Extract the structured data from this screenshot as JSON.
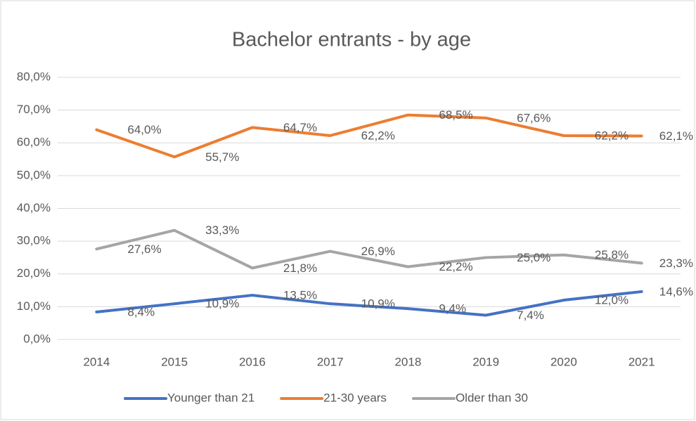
{
  "chart_data": {
    "type": "line",
    "title": "Bachelor entrants - by age",
    "categories": [
      "2014",
      "2015",
      "2016",
      "2017",
      "2018",
      "2019",
      "2020",
      "2021"
    ],
    "series": [
      {
        "name": "Younger than 21",
        "color": "#4472c4",
        "values": [
          8.4,
          10.9,
          13.5,
          10.9,
          9.4,
          7.4,
          12.0,
          14.6
        ],
        "value_labels": [
          "8,4%",
          "10,9%",
          "13,5%",
          "10,9%",
          "9,4%",
          "7,4%",
          "12,0%",
          "14,6%"
        ]
      },
      {
        "name": "21-30 years",
        "color": "#ed7d31",
        "values": [
          64.0,
          55.7,
          64.7,
          62.2,
          68.5,
          67.6,
          62.2,
          62.1
        ],
        "value_labels": [
          "64,0%",
          "55,7%",
          "64,7%",
          "62,2%",
          "68,5%",
          "67,6%",
          "62,2%",
          "62,1%"
        ]
      },
      {
        "name": "Older than 30",
        "color": "#a5a5a5",
        "values": [
          27.6,
          33.3,
          21.8,
          26.9,
          22.2,
          25.0,
          25.8,
          23.3
        ],
        "value_labels": [
          "27,6%",
          "33,3%",
          "21,8%",
          "26,9%",
          "22,2%",
          "25,0%",
          "25,8%",
          "23,3%"
        ]
      }
    ],
    "ylim": [
      0,
      80
    ],
    "yticks": [
      {
        "value": 0,
        "label": "0,0%"
      },
      {
        "value": 10,
        "label": "10,0%"
      },
      {
        "value": 20,
        "label": "20,0%"
      },
      {
        "value": 30,
        "label": "30,0%"
      },
      {
        "value": 40,
        "label": "40,0%"
      },
      {
        "value": 50,
        "label": "50,0%"
      },
      {
        "value": 60,
        "label": "60,0%"
      },
      {
        "value": 70,
        "label": "70,0%"
      },
      {
        "value": 80,
        "label": "80,0%"
      }
    ],
    "grid": true,
    "legend": "bottom"
  }
}
